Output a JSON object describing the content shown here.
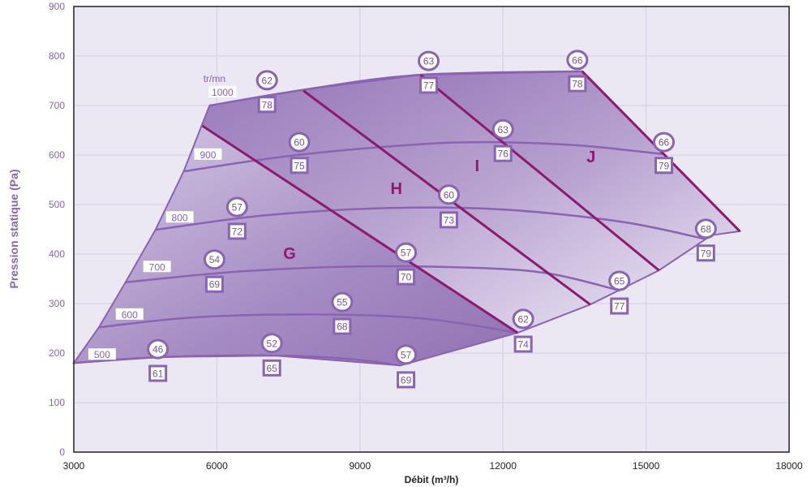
{
  "chart_data": {
    "type": "line",
    "title": "",
    "xlabel": "Débit (m³/h)",
    "ylabel": "Pression statique (Pa)",
    "xlim": [
      3000,
      18000
    ],
    "ylim": [
      0,
      900
    ],
    "xticks": [
      3000,
      6000,
      9000,
      12000,
      15000,
      18000
    ],
    "yticks": [
      0,
      100,
      200,
      300,
      400,
      500,
      600,
      700,
      800,
      900
    ],
    "grid": true,
    "speed_unit": "tr/mn",
    "colors": {
      "plot_bg": "#ece8f3",
      "curve": "#8a63b3",
      "zone_line": "#8c1a6f",
      "letter": "#8c1a6f",
      "light": "#d9cfe6",
      "dark": "#9678b5"
    },
    "envelope": [
      [
        3000,
        180
      ],
      [
        3525,
        252
      ],
      [
        4085,
        343
      ],
      [
        4712,
        449
      ],
      [
        5305,
        567
      ],
      [
        5847,
        700
      ],
      [
        7898,
        733
      ],
      [
        10271,
        762
      ],
      [
        13661,
        769
      ],
      [
        16966,
        446
      ],
      [
        16373,
        438
      ],
      [
        15271,
        367
      ],
      [
        13830,
        298
      ],
      [
        12305,
        241
      ],
      [
        9847,
        175
      ],
      [
        7220,
        195
      ],
      [
        4847,
        192
      ]
    ],
    "zones": [
      {
        "name": "G",
        "label_pos": [
          7525,
          402
        ],
        "polygon": [
          [
            3000,
            180
          ],
          [
            3525,
            252
          ],
          [
            4085,
            343
          ],
          [
            4712,
            449
          ],
          [
            5305,
            567
          ],
          [
            5695,
            659
          ],
          [
            12305,
            241
          ],
          [
            9847,
            175
          ],
          [
            7220,
            195
          ],
          [
            4847,
            192
          ]
        ]
      },
      {
        "name": "H",
        "label_pos": [
          9763,
          533
        ],
        "polygon": [
          [
            5695,
            659
          ],
          [
            5847,
            700
          ],
          [
            7814,
            730
          ],
          [
            13830,
            298
          ],
          [
            12305,
            241
          ]
        ]
      },
      {
        "name": "I",
        "label_pos": [
          11458,
          579
        ],
        "polygon": [
          [
            7814,
            730
          ],
          [
            7898,
            733
          ],
          [
            10271,
            762
          ],
          [
            15271,
            367
          ],
          [
            13830,
            298
          ]
        ]
      },
      {
        "name": "J",
        "label_pos": [
          13847,
          597
        ],
        "polygon": [
          [
            10271,
            762
          ],
          [
            13661,
            769
          ],
          [
            16966,
            446
          ],
          [
            16373,
            438
          ],
          [
            15271,
            367
          ]
        ]
      }
    ],
    "zone_lines": [
      [
        [
          5695,
          659
        ],
        [
          12305,
          241
        ]
      ],
      [
        [
          7814,
          730
        ],
        [
          13830,
          298
        ]
      ],
      [
        [
          10271,
          762
        ],
        [
          15271,
          367
        ]
      ],
      [
        [
          13661,
          769
        ],
        [
          16966,
          446
        ]
      ]
    ],
    "speed_curves": [
      {
        "rpm": "500",
        "label_pos": [
          3593,
          198
        ],
        "points": [
          [
            3000,
            180
          ],
          [
            4847,
            192
          ],
          [
            7220,
            195
          ],
          [
            8800,
            188
          ],
          [
            9847,
            175
          ]
        ]
      },
      {
        "rpm": "600",
        "label_pos": [
          4169,
          279
        ],
        "points": [
          [
            3525,
            252
          ],
          [
            5500,
            272
          ],
          [
            8000,
            278
          ],
          [
            10300,
            270
          ],
          [
            12305,
            241
          ]
        ]
      },
      {
        "rpm": "700",
        "label_pos": [
          4746,
          375
        ],
        "points": [
          [
            4085,
            343
          ],
          [
            6500,
            365
          ],
          [
            9000,
            375
          ],
          [
            11500,
            372
          ],
          [
            13000,
            360
          ],
          [
            14458,
            326
          ]
        ]
      },
      {
        "rpm": "800",
        "label_pos": [
          5220,
          475
        ],
        "points": [
          [
            4712,
            449
          ],
          [
            7000,
            478
          ],
          [
            9600,
            493
          ],
          [
            12000,
            490
          ],
          [
            14500,
            465
          ],
          [
            16254,
            430
          ]
        ]
      },
      {
        "rpm": "900",
        "label_pos": [
          5814,
          602
        ],
        "points": [
          [
            5305,
            567
          ],
          [
            7500,
            598
          ],
          [
            10000,
            620
          ],
          [
            11600,
            626
          ],
          [
            13500,
            620
          ],
          [
            15356,
            602
          ]
        ]
      },
      {
        "rpm": "1000",
        "label_pos": [
          6119,
          728
        ],
        "points": [
          [
            5847,
            700
          ],
          [
            7898,
            733
          ],
          [
            10271,
            762
          ],
          [
            13661,
            769
          ]
        ]
      }
    ],
    "circle_labels": [
      {
        "v": "62",
        "x": 7051,
        "y": 751
      },
      {
        "v": "63",
        "x": 10441,
        "y": 790
      },
      {
        "v": "66",
        "x": 13559,
        "y": 792
      },
      {
        "v": "60",
        "x": 7729,
        "y": 626
      },
      {
        "v": "63",
        "x": 12000,
        "y": 652
      },
      {
        "v": "66",
        "x": 15373,
        "y": 626
      },
      {
        "v": "57",
        "x": 6424,
        "y": 495
      },
      {
        "v": "60",
        "x": 10864,
        "y": 520
      },
      {
        "v": "68",
        "x": 16254,
        "y": 451
      },
      {
        "v": "54",
        "x": 5949,
        "y": 389
      },
      {
        "v": "57",
        "x": 9966,
        "y": 403
      },
      {
        "v": "65",
        "x": 14441,
        "y": 346
      },
      {
        "v": "55",
        "x": 8627,
        "y": 303
      },
      {
        "v": "62",
        "x": 12424,
        "y": 269
      },
      {
        "v": "46",
        "x": 4763,
        "y": 208
      },
      {
        "v": "52",
        "x": 7153,
        "y": 220
      },
      {
        "v": "57",
        "x": 9966,
        "y": 197
      }
    ],
    "square_labels": [
      {
        "v": "78",
        "x": 7051,
        "y": 702
      },
      {
        "v": "77",
        "x": 10441,
        "y": 741
      },
      {
        "v": "78",
        "x": 13559,
        "y": 744
      },
      {
        "v": "75",
        "x": 7729,
        "y": 579
      },
      {
        "v": "76",
        "x": 12000,
        "y": 603
      },
      {
        "v": "79",
        "x": 15373,
        "y": 579
      },
      {
        "v": "72",
        "x": 6424,
        "y": 446
      },
      {
        "v": "73",
        "x": 10864,
        "y": 469
      },
      {
        "v": "79",
        "x": 16254,
        "y": 402
      },
      {
        "v": "69",
        "x": 5949,
        "y": 339
      },
      {
        "v": "70",
        "x": 9966,
        "y": 354
      },
      {
        "v": "77",
        "x": 14441,
        "y": 295
      },
      {
        "v": "68",
        "x": 8627,
        "y": 254
      },
      {
        "v": "74",
        "x": 12424,
        "y": 218
      },
      {
        "v": "61",
        "x": 4763,
        "y": 159
      },
      {
        "v": "65",
        "x": 7153,
        "y": 170
      },
      {
        "v": "69",
        "x": 9966,
        "y": 146
      }
    ],
    "unit_label_pos": [
      5949,
      754
    ]
  }
}
